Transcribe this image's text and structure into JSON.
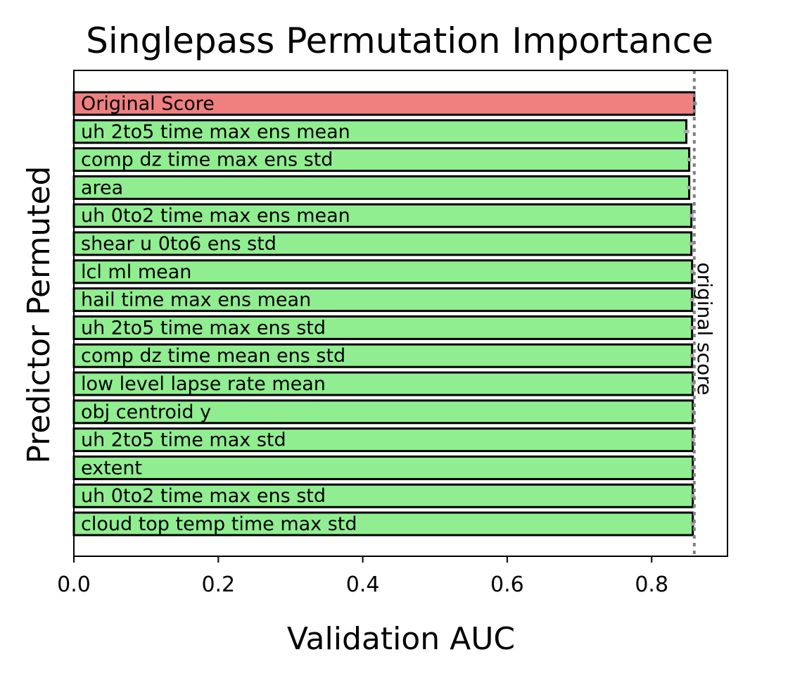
{
  "chart_data": {
    "type": "bar",
    "orientation": "horizontal",
    "title": "Singlepass Permutation Importance",
    "xlabel": "Validation AUC",
    "ylabel": "Predictor Permuted",
    "xlim": [
      0,
      0.905
    ],
    "xticks": [
      0.0,
      0.2,
      0.4,
      0.6,
      0.8
    ],
    "xtick_labels": [
      "0.0",
      "0.2",
      "0.4",
      "0.6",
      "0.8"
    ],
    "grid": false,
    "categories": [
      "Original Score",
      "uh_2to5_time_max_ens_mean",
      "comp_dz_time_max_ens_std",
      "area",
      "uh_0to2_time_max_ens_mean",
      "shear_u_0to6_ens_std",
      "lcl_ml_mean",
      "hail_time_max_ens_mean",
      "uh_2to5_time_max_ens_std",
      "comp_dz_time_mean_ens_std",
      "low_level_lapse_rate_mean",
      "obj_centroid_y",
      "uh_2to5_time_max_std",
      "extent",
      "uh_0to2_time_max_ens_std",
      "cloud_top_temp_time_max_std"
    ],
    "category_labels": [
      "Original Score",
      "uh 2to5 time max ens mean",
      "comp dz time max ens std",
      "area",
      "uh 0to2 time max ens mean",
      "shear u 0to6 ens std",
      "lcl ml mean",
      "hail time max ens mean",
      "uh 2to5 time max ens std",
      "comp dz time mean ens std",
      "low level lapse rate mean",
      "obj centroid y",
      "uh 2to5 time max std",
      "extent",
      "uh 0to2 time max ens std",
      "cloud top temp time max std"
    ],
    "values": [
      0.859,
      0.848,
      0.852,
      0.852,
      0.855,
      0.855,
      0.856,
      0.856,
      0.856,
      0.856,
      0.857,
      0.857,
      0.857,
      0.857,
      0.857,
      0.857
    ],
    "error_halfwidth": [
      0.004,
      0.004,
      0.003,
      0.003,
      0.003,
      0.003,
      0.003,
      0.003,
      0.003,
      0.003,
      0.003,
      0.003,
      0.003,
      0.003,
      0.003,
      0.003
    ],
    "bar_colors": [
      "#f08080",
      "#90ee90",
      "#90ee90",
      "#90ee90",
      "#90ee90",
      "#90ee90",
      "#90ee90",
      "#90ee90",
      "#90ee90",
      "#90ee90",
      "#90ee90",
      "#90ee90",
      "#90ee90",
      "#90ee90",
      "#90ee90",
      "#90ee90"
    ],
    "reference_line": {
      "value": 0.859,
      "label": "original score",
      "color": "#808080"
    },
    "edge_color": "#000000"
  }
}
